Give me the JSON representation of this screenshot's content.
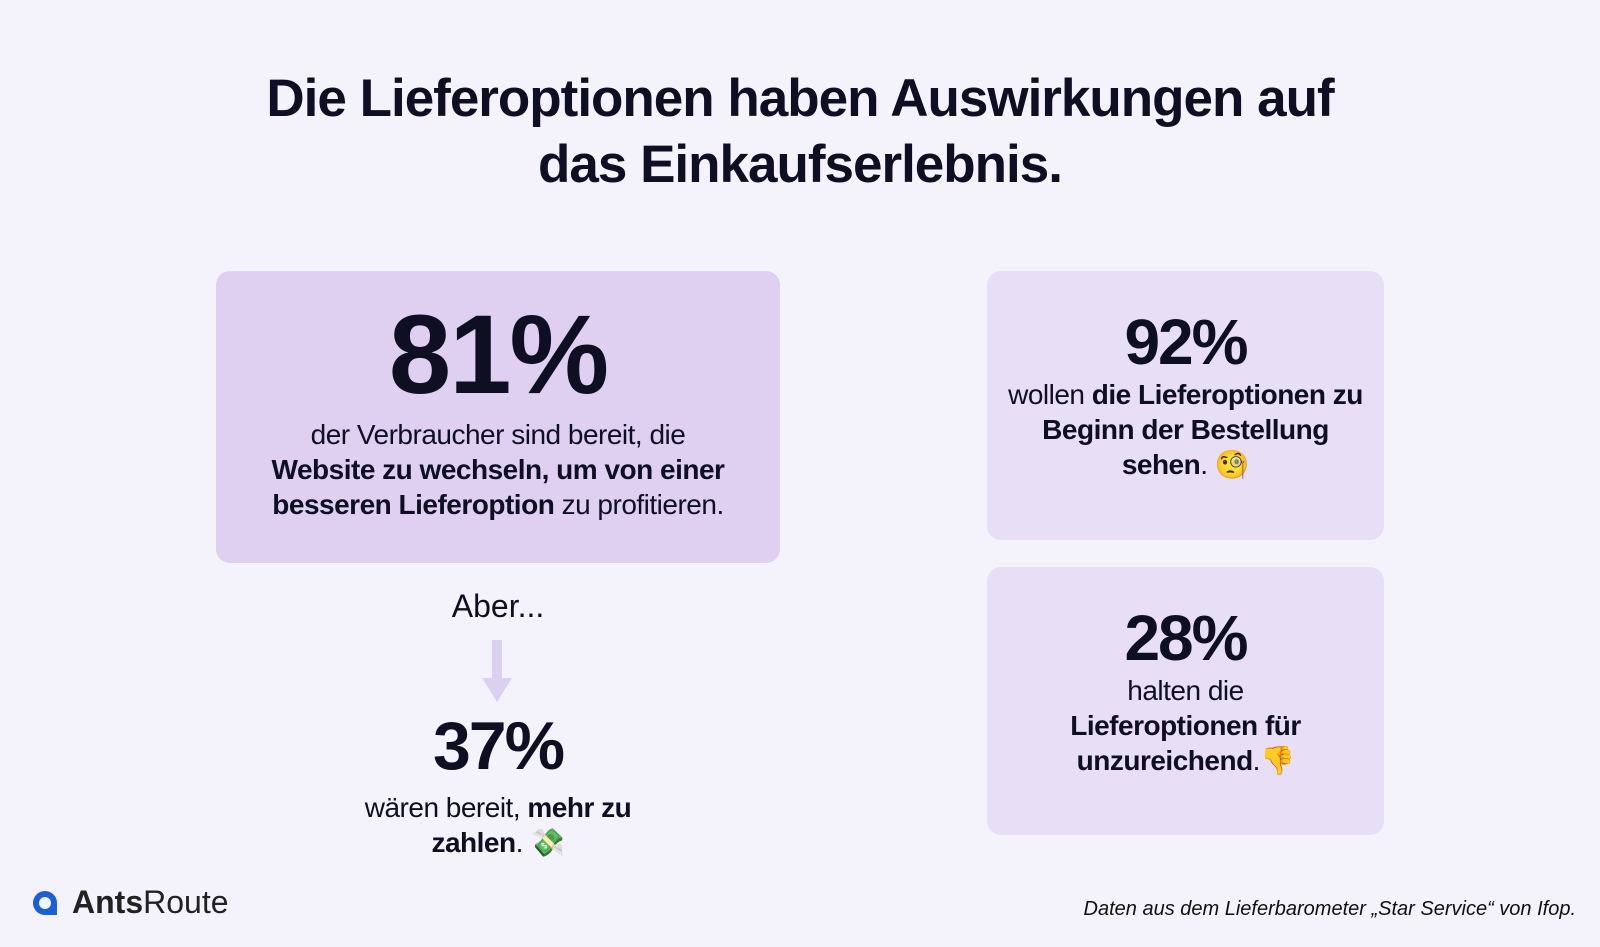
{
  "title_line1": "Die Lieferoptionen haben Auswirkungen auf",
  "title_line2": "das Einkaufserlebnis.",
  "stat81": {
    "value": "81%",
    "pre": "der Verbraucher sind bereit, die",
    "bold": "Website zu wechseln, um von einer besseren Lieferoption",
    "post": " zu profitieren."
  },
  "aber": "Aber...",
  "stat37": {
    "value": "37%",
    "pre": "wären bereit, ",
    "bold": "mehr zu zahlen",
    "post": ".",
    "emoji": "💸"
  },
  "stat92": {
    "value": "92%",
    "pre": "wollen ",
    "bold": "die Lieferoptionen zu Beginn der Bestellung sehen",
    "post": ".",
    "emoji": "🧐"
  },
  "stat28": {
    "value": "28%",
    "pre": "halten die",
    "bold": "Lieferoptionen für unzureichend",
    "post": ".",
    "emoji": "👎"
  },
  "logo": {
    "bold": "Ants",
    "regular": "Route"
  },
  "source": "Daten aus dem Lieferbarometer „Star Service“ von Ifop.",
  "colors": {
    "background": "#f4f2fb",
    "main_card": "#dfd0f2",
    "side_card": "#e8def5",
    "arrow": "#dcd0f0",
    "logo": "#1a5fd6"
  }
}
